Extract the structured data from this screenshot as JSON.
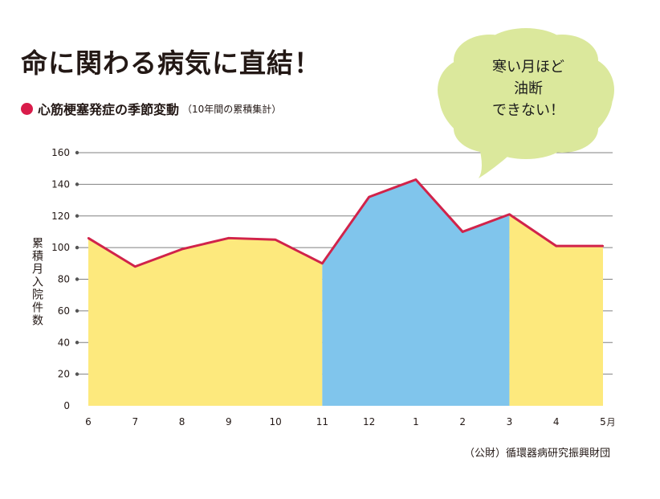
{
  "header": {
    "title": "命に関わる病気に直結！",
    "subtitle": "心筋梗塞発症の季節変動",
    "note": "（10年間の累積集計）"
  },
  "callout": {
    "lines": [
      "寒い月ほど",
      "油断",
      "できない！"
    ]
  },
  "source": "（公財）循環器病研究振興財団",
  "colors": {
    "line": "#d1234a",
    "warm_fill": "#fde97d",
    "cold_fill": "#80c5ec",
    "bubble": "#dbe89c",
    "grid": "#808080",
    "marker": "#d91c4a"
  },
  "chart_data": {
    "type": "area",
    "categories": [
      "6",
      "7",
      "8",
      "9",
      "10",
      "11",
      "12",
      "1",
      "2",
      "3",
      "4",
      "5"
    ],
    "x_unit": "月",
    "values": [
      106,
      88,
      99,
      106,
      105,
      90,
      132,
      143,
      110,
      121,
      101,
      101
    ],
    "cold_period": [
      "11",
      "3"
    ],
    "ylabel": "累積月入院件数",
    "ylim": [
      0,
      160
    ],
    "yticks": [
      0,
      20,
      40,
      60,
      80,
      100,
      120,
      140,
      160
    ],
    "grid": true
  }
}
